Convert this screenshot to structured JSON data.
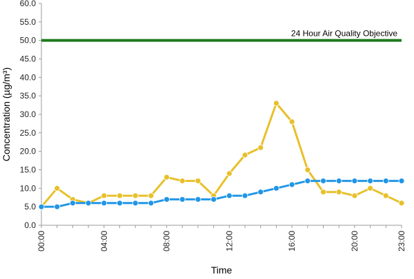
{
  "chart_data": {
    "type": "line",
    "title": "",
    "xlabel": "Time",
    "ylabel": "Concentration (µg/m³)",
    "ylim": [
      0,
      60
    ],
    "y_ticks": [
      "0.0",
      "5.0",
      "10.0",
      "15.0",
      "20.0",
      "25.0",
      "30.0",
      "35.0",
      "40.0",
      "45.0",
      "50.0",
      "55.0",
      "60.0"
    ],
    "x": [
      "00:00",
      "01:00",
      "02:00",
      "03:00",
      "04:00",
      "05:00",
      "06:00",
      "07:00",
      "08:00",
      "09:00",
      "10:00",
      "11:00",
      "12:00",
      "13:00",
      "14:00",
      "15:00",
      "16:00",
      "17:00",
      "18:00",
      "19:00",
      "20:00",
      "21:00",
      "22:00",
      "23:00"
    ],
    "x_tick_labels": [
      "00:00",
      "04:00",
      "08:00",
      "12:00",
      "16:00",
      "20:00",
      "23:00"
    ],
    "x_tick_hours": [
      0,
      4,
      8,
      12,
      16,
      20,
      23
    ],
    "grid": false,
    "series": [
      {
        "color": "#e8c02a",
        "values": [
          5,
          10,
          7,
          6,
          8,
          8,
          8,
          8,
          13,
          12,
          12,
          8,
          14,
          19,
          21,
          33,
          28,
          15,
          9,
          9,
          8,
          10,
          8,
          6
        ]
      },
      {
        "color": "#2196e6",
        "values": [
          5,
          5,
          6,
          6,
          6,
          6,
          6,
          6,
          7,
          7,
          7,
          7,
          8,
          8,
          9,
          10,
          11,
          12,
          12,
          12,
          12,
          12,
          12,
          12
        ]
      }
    ],
    "objective": {
      "label": "24 Hour Air Quality Objective",
      "value": 50,
      "color": "#1e7a1e"
    }
  }
}
